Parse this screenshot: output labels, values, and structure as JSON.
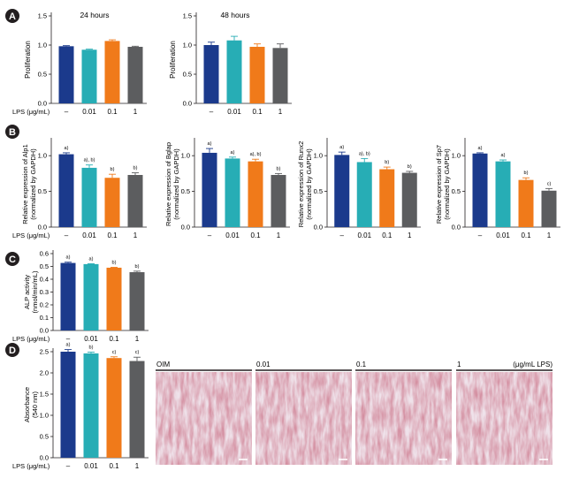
{
  "panels": [
    {
      "letter": "A"
    },
    {
      "letter": "B"
    },
    {
      "letter": "C"
    },
    {
      "letter": "D"
    }
  ],
  "lps_label": "LPS (μg/mL)",
  "colors": {
    "navy": "#1b3a8c",
    "teal": "#27adb5",
    "orange": "#f07a1a",
    "gray": "#5c5d5f"
  },
  "chart_data": [
    {
      "id": "A1",
      "type": "bar",
      "title": "24 hours",
      "categories": [
        "–",
        "0.01",
        "0.1",
        "1"
      ],
      "values": [
        0.98,
        0.92,
        1.07,
        0.97
      ],
      "errors": [
        0.01,
        0.01,
        0.02,
        0.01
      ],
      "ylabel": "Proliferation",
      "ylim": [
        0,
        1.5
      ],
      "yticks": [
        "0.0",
        "0.5",
        "1.0",
        "1.5"
      ],
      "sig": []
    },
    {
      "id": "A2",
      "type": "bar",
      "title": "48 hours",
      "categories": [
        "–",
        "0.01",
        "0.1",
        "1"
      ],
      "values": [
        1.0,
        1.08,
        0.97,
        0.95
      ],
      "errors": [
        0.05,
        0.07,
        0.05,
        0.07
      ],
      "ylabel": "Proliferation",
      "ylim": [
        0,
        1.5
      ],
      "yticks": [
        "0.0",
        "0.5",
        "1.0",
        "1.5"
      ],
      "sig": []
    },
    {
      "id": "B1",
      "type": "bar",
      "title": "",
      "categories": [
        "–",
        "0.01",
        "0.1",
        "1"
      ],
      "values": [
        1.02,
        0.83,
        0.69,
        0.73
      ],
      "errors": [
        0.02,
        0.04,
        0.05,
        0.03
      ],
      "ylabel": "Relative expression of Alp1",
      "ylabel2": "(normalized by GAPDH)",
      "ylim": [
        0,
        1.2
      ],
      "yticks": [
        "0.0",
        "0.5",
        "1.0"
      ],
      "sig": [
        "a)",
        "a), b)",
        "b)",
        "b)"
      ]
    },
    {
      "id": "B2",
      "type": "bar",
      "title": "",
      "categories": [
        "–",
        "0.01",
        "0.1",
        "1"
      ],
      "values": [
        1.04,
        0.96,
        0.92,
        0.73
      ],
      "errors": [
        0.06,
        0.02,
        0.03,
        0.02
      ],
      "ylabel": "Relative expression of Bglap",
      "ylabel2": "(normalized by GAPDH)",
      "ylim": [
        0,
        1.2
      ],
      "yticks": [
        "0.0",
        "0.5",
        "1.0"
      ],
      "sig": [
        "a)",
        "a)",
        "a), b)",
        "b)"
      ]
    },
    {
      "id": "B3",
      "type": "bar",
      "title": "",
      "categories": [
        "–",
        "0.01",
        "0.1",
        "1"
      ],
      "values": [
        1.01,
        0.91,
        0.81,
        0.76
      ],
      "errors": [
        0.04,
        0.05,
        0.03,
        0.02
      ],
      "ylabel": "Relative expression of Runx2",
      "ylabel2": "(normalized by GAPDH)",
      "ylim": [
        0,
        1.2
      ],
      "yticks": [
        "0.0",
        "0.5",
        "1.0"
      ],
      "sig": [
        "a)",
        "a), b)",
        "b)",
        "b)"
      ]
    },
    {
      "id": "B4",
      "type": "bar",
      "title": "",
      "categories": [
        "–",
        "0.01",
        "0.1",
        "1"
      ],
      "values": [
        1.03,
        0.92,
        0.66,
        0.51
      ],
      "errors": [
        0.01,
        0.02,
        0.03,
        0.03
      ],
      "ylabel": "Relative expression of Sp7",
      "ylabel2": "(normalized by GAPDH)",
      "ylim": [
        0,
        1.2
      ],
      "yticks": [
        "0.0",
        "0.5",
        "1.0"
      ],
      "sig": [
        "a)",
        "a)",
        "b)",
        "c)"
      ]
    },
    {
      "id": "C",
      "type": "bar",
      "title": "",
      "categories": [
        "–",
        "0.01",
        "0.1",
        "1"
      ],
      "values": [
        0.527,
        0.518,
        0.49,
        0.455
      ],
      "errors": [
        0.006,
        0.003,
        0.003,
        0.008
      ],
      "ylabel": "ALP activity",
      "ylabel2": "(nmol/min/mL)",
      "ylim": [
        0,
        0.6
      ],
      "yticks": [
        "0.0",
        "0.1",
        "0.2",
        "0.3",
        "0.4",
        "0.5",
        "0.6"
      ],
      "sig": [
        "a)",
        "a)",
        "b)",
        "b)"
      ]
    },
    {
      "id": "D",
      "type": "bar",
      "title": "",
      "categories": [
        "–",
        "0.01",
        "0.1",
        "1"
      ],
      "values": [
        2.5,
        2.46,
        2.35,
        2.28
      ],
      "errors": [
        0.05,
        0.03,
        0.03,
        0.09
      ],
      "ylabel": "Absorbance",
      "ylabel2": "(540 nm)",
      "ylim": [
        0,
        2.5
      ],
      "yticks": [
        "0.0",
        "0.5",
        "1.0",
        "1.5",
        "2.0",
        "2.5"
      ],
      "sig": [
        "a)",
        "b)",
        "c)",
        "c)"
      ]
    }
  ],
  "micrographs": {
    "labels": [
      "OIM",
      "0.01",
      "0.1",
      "1"
    ],
    "unit": "(μg/mL LPS)"
  }
}
